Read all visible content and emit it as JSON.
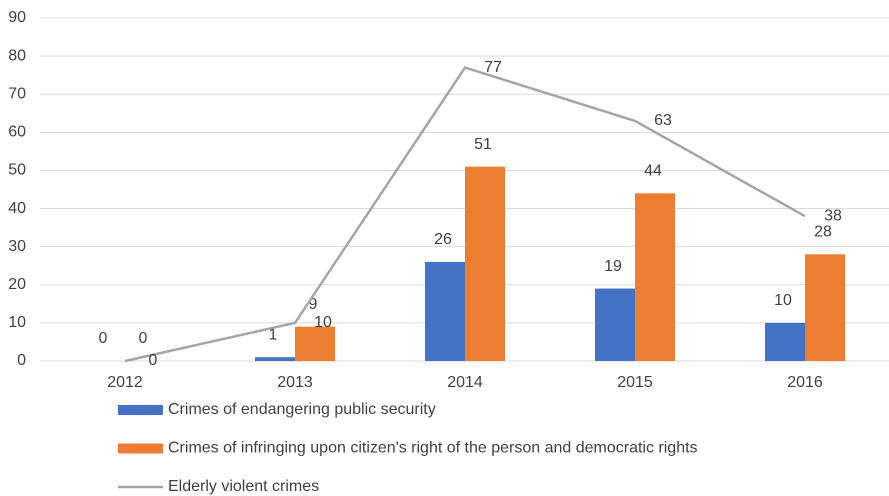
{
  "chart_data": {
    "type": "bar",
    "categories": [
      "2012",
      "2013",
      "2014",
      "2015",
      "2016"
    ],
    "series": [
      {
        "name": "Crimes of endangering public security",
        "color": "#4472c4",
        "values": [
          0,
          1,
          26,
          19,
          10
        ]
      },
      {
        "name": "Crimes of infringing upon citizen's right of the person and democratic rights",
        "color": "#ed7d31",
        "values": [
          0,
          9,
          51,
          44,
          28
        ]
      },
      {
        "name": "Elderly violent crimes",
        "color": "#a5a5a5",
        "type": "line",
        "values": [
          0,
          10,
          77,
          63,
          38
        ]
      }
    ],
    "ylim": [
      0,
      90
    ],
    "yticks": [
      0,
      10,
      20,
      30,
      40,
      50,
      60,
      70,
      80,
      90
    ],
    "grid": true,
    "legend": "bottom"
  }
}
